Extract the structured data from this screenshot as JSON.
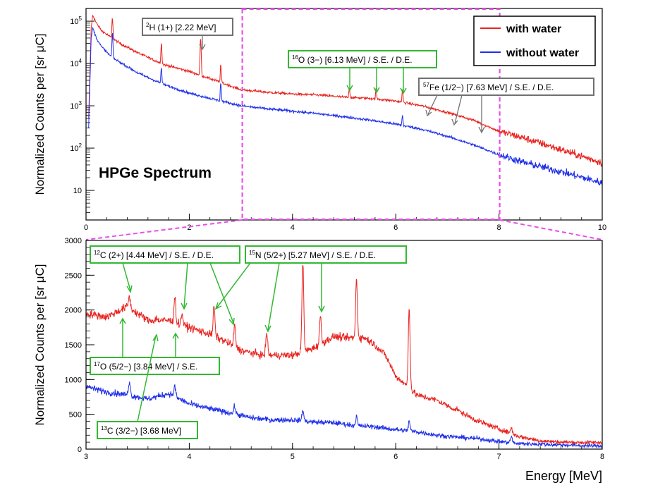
{
  "figure": {
    "ylabel_top": "Normalized Counts per [sr μC]",
    "ylabel_bottom": "Normalized Counts per [sr μC]",
    "xlabel": "Energy [MeV]",
    "spectrum_label": "HPGe Spectrum"
  },
  "legend": {
    "items": [
      {
        "label": "with water",
        "color": "#e8231f"
      },
      {
        "label": "without water",
        "color": "#1f2fe8"
      }
    ]
  },
  "colors": {
    "with_water": "#e8231f",
    "without_water": "#1f2fe8",
    "zoom_box": "#e84fe8",
    "annotation_green": "#33b833",
    "annotation_gray": "#707070"
  },
  "chart_data": [
    {
      "type": "line",
      "title": "HPGe Spectrum",
      "xlabel": "",
      "ylabel": "Normalized Counts per [sr μC]",
      "yscale": "log",
      "xlim": [
        0,
        10
      ],
      "ylim": [
        2,
        200000
      ],
      "x_ticks": [
        0,
        2,
        4,
        6,
        8,
        10
      ],
      "y_ticks": [
        {
          "value": 10,
          "base": "10",
          "exp": ""
        },
        {
          "value": 100,
          "base": "10",
          "exp": "2"
        },
        {
          "value": 1000,
          "base": "10",
          "exp": "3"
        },
        {
          "value": 10000,
          "base": "10",
          "exp": "4"
        },
        {
          "value": 100000,
          "base": "10",
          "exp": "5"
        }
      ],
      "zoom_region": [
        3,
        8
      ],
      "series": [
        {
          "name": "with water",
          "x": [
            0.05,
            0.1,
            0.13,
            0.2,
            0.3,
            0.5,
            0.7,
            1.0,
            1.5,
            2.0,
            2.5,
            3.0,
            3.5,
            4.0,
            4.5,
            5.0,
            5.5,
            6.0,
            6.5,
            7.0,
            7.5,
            8.0,
            8.5,
            9.0,
            9.5,
            10.0
          ],
          "y": [
            500,
            70000,
            140000,
            90000,
            60000,
            40000,
            28000,
            18000,
            9500,
            6500,
            4000,
            2400,
            2100,
            1900,
            1800,
            1600,
            1500,
            1300,
            1000,
            700,
            460,
            250,
            170,
            110,
            70,
            45
          ],
          "peaks": [
            {
              "x": 0.511,
              "y": 120000
            },
            {
              "x": 1.46,
              "y": 30000
            },
            {
              "x": 2.22,
              "y": 40000
            },
            {
              "x": 2.61,
              "y": 9000
            },
            {
              "x": 5.1,
              "y": 2700
            },
            {
              "x": 5.62,
              "y": 2600
            },
            {
              "x": 6.13,
              "y": 2400
            },
            {
              "x": 6.6,
              "y": 800
            },
            {
              "x": 7.12,
              "y": 600
            },
            {
              "x": 7.63,
              "y": 320
            }
          ]
        },
        {
          "name": "without water",
          "x": [
            0.05,
            0.1,
            0.13,
            0.2,
            0.3,
            0.5,
            0.7,
            1.0,
            1.5,
            2.0,
            2.5,
            3.0,
            3.5,
            4.0,
            4.5,
            5.0,
            5.5,
            6.0,
            6.5,
            7.0,
            7.5,
            8.0,
            8.5,
            9.0,
            9.5,
            10.0
          ],
          "y": [
            300,
            40000,
            70000,
            40000,
            25000,
            14000,
            10000,
            6000,
            3200,
            2000,
            1400,
            1000,
            850,
            750,
            650,
            550,
            460,
            370,
            280,
            190,
            120,
            70,
            45,
            32,
            22,
            15
          ],
          "peaks": [
            {
              "x": 0.511,
              "y": 50000
            },
            {
              "x": 1.46,
              "y": 8000
            },
            {
              "x": 2.61,
              "y": 3500
            },
            {
              "x": 6.13,
              "y": 600
            }
          ]
        }
      ],
      "annotations": [
        {
          "text_iso": "2",
          "text_main": "H (1+) [2.22 MeV]",
          "color": "gray",
          "arrows_x": [
            2.22
          ]
        },
        {
          "text_iso": "16",
          "text_main": "O (3−) [6.13 MeV] / S.E. / D.E.",
          "color": "green",
          "arrows_x": [
            5.1,
            5.62,
            6.13
          ]
        },
        {
          "text_iso": "57",
          "text_main": "Fe (1/2−) [7.63 MeV] / S.E. / D.E.",
          "color": "gray",
          "arrows_x": [
            6.6,
            7.12,
            7.63
          ]
        }
      ]
    },
    {
      "type": "line",
      "title": "",
      "xlabel": "Energy [MeV]",
      "ylabel": "Normalized Counts per [sr μC]",
      "yscale": "linear",
      "xlim": [
        3,
        8
      ],
      "ylim": [
        0,
        3000
      ],
      "x_ticks": [
        3,
        4,
        5,
        6,
        7,
        8
      ],
      "y_ticks": [
        0,
        500,
        1000,
        1500,
        2000,
        2500,
        3000
      ],
      "series": [
        {
          "name": "with water",
          "x": [
            3.0,
            3.2,
            3.4,
            3.6,
            3.8,
            4.0,
            4.2,
            4.35,
            4.5,
            4.7,
            4.9,
            5.0,
            5.2,
            5.4,
            5.5,
            5.7,
            5.8,
            5.9,
            6.0,
            6.1,
            6.2,
            6.4,
            6.6,
            6.8,
            7.0,
            7.2,
            7.4,
            7.6,
            7.8,
            8.0
          ],
          "y": [
            1950,
            1900,
            2050,
            1850,
            1850,
            1750,
            1650,
            1550,
            1420,
            1350,
            1350,
            1350,
            1450,
            1620,
            1600,
            1600,
            1500,
            1350,
            1050,
            920,
            780,
            700,
            550,
            400,
            290,
            180,
            120,
            100,
            95,
            95
          ],
          "peaks": [
            {
              "x": 3.42,
              "y": 2200
            },
            {
              "x": 3.68,
              "y": 1880
            },
            {
              "x": 3.86,
              "y": 2180
            },
            {
              "x": 3.93,
              "y": 1950
            },
            {
              "x": 4.24,
              "y": 2050
            },
            {
              "x": 4.44,
              "y": 1780
            },
            {
              "x": 4.75,
              "y": 1680
            },
            {
              "x": 5.1,
              "y": 2700
            },
            {
              "x": 5.27,
              "y": 1900
            },
            {
              "x": 5.62,
              "y": 2450
            },
            {
              "x": 6.13,
              "y": 2050
            },
            {
              "x": 6.6,
              "y": 580
            },
            {
              "x": 7.12,
              "y": 310
            }
          ]
        },
        {
          "name": "without water",
          "x": [
            3.0,
            3.2,
            3.4,
            3.6,
            3.8,
            4.0,
            4.2,
            4.4,
            4.6,
            4.8,
            5.0,
            5.2,
            5.4,
            5.6,
            5.8,
            6.0,
            6.2,
            6.4,
            6.6,
            6.8,
            7.0,
            7.2,
            7.4,
            7.6,
            7.8,
            8.0
          ],
          "y": [
            900,
            820,
            780,
            720,
            800,
            650,
            580,
            520,
            450,
            420,
            420,
            390,
            380,
            340,
            320,
            280,
            250,
            200,
            170,
            150,
            110,
            80,
            70,
            60,
            50,
            45
          ],
          "peaks": [
            {
              "x": 3.42,
              "y": 980
            },
            {
              "x": 3.86,
              "y": 900
            },
            {
              "x": 4.44,
              "y": 620
            },
            {
              "x": 5.1,
              "y": 560
            },
            {
              "x": 5.62,
              "y": 470
            },
            {
              "x": 6.13,
              "y": 400
            },
            {
              "x": 7.12,
              "y": 180
            }
          ]
        }
      ],
      "annotations": [
        {
          "text_iso": "12",
          "text_main": "C (2+) [4.44 MeV] / S.E. / D.E.",
          "arrows_x": [
            3.42,
            3.93,
            4.44
          ]
        },
        {
          "text_iso": "15",
          "text_main": "N (5/2+) [5.27 MeV] / S.E. / D.E.",
          "arrows_x": [
            4.24,
            4.75,
            5.27
          ]
        },
        {
          "text_iso": "17",
          "text_main": "O (5/2−) [3.84 MeV] / S.E.",
          "arrows_x": [
            3.35,
            3.86
          ]
        },
        {
          "text_iso": "13",
          "text_main": "C (3/2−) [3.68 MeV]",
          "arrows_x": [
            3.68
          ]
        }
      ]
    }
  ]
}
